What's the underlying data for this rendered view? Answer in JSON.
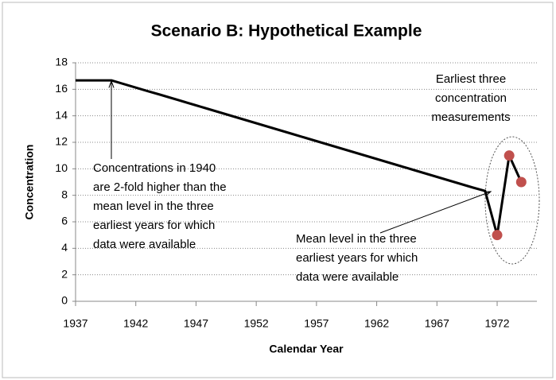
{
  "chart_data": {
    "type": "line",
    "title": "Scenario B: Hypothetical Example",
    "x_label": "Calendar Year",
    "y_label": "Concentration",
    "xlim": [
      1937,
      1975.3
    ],
    "xticks": [
      1937,
      1942,
      1947,
      1952,
      1957,
      1962,
      1967,
      1972
    ],
    "ylim": [
      0,
      18
    ],
    "yticks": [
      0,
      2,
      4,
      6,
      8,
      10,
      12,
      14,
      16,
      18
    ],
    "grid": true,
    "series": [
      {
        "color": "#000000",
        "markers": false,
        "x": [
          1937,
          1938,
          1939,
          1940,
          1941,
          1942,
          1943,
          1944,
          1945,
          1946,
          1947,
          1948,
          1949,
          1950,
          1951,
          1952,
          1953,
          1954,
          1955,
          1956,
          1957,
          1958,
          1959,
          1960,
          1961,
          1962,
          1963,
          1964,
          1965,
          1966,
          1967,
          1968,
          1969,
          1970,
          1971,
          1972,
          1973,
          1974
        ],
        "values": [
          16.67,
          16.67,
          16.67,
          16.67,
          16.4,
          16.13,
          15.86,
          15.6,
          15.33,
          15.06,
          14.79,
          14.52,
          14.25,
          13.98,
          13.71,
          13.44,
          13.17,
          12.9,
          12.63,
          12.36,
          12.09,
          11.82,
          11.55,
          11.28,
          11.01,
          10.74,
          10.47,
          10.2,
          9.93,
          9.66,
          9.39,
          9.12,
          8.85,
          8.58,
          8.33,
          5,
          11,
          9
        ]
      },
      {
        "color": "#c0504d",
        "markers": true,
        "x": [
          1972,
          1973,
          1974
        ],
        "values": [
          5,
          11,
          9
        ]
      }
    ],
    "annotations": [
      {
        "lines": [
          "Concentrations in 1940",
          "are 2-fold higher than the",
          "mean level in the three",
          "earliest years for which",
          "data were available"
        ]
      },
      {
        "lines": [
          "Mean level in the three",
          "earliest years for which",
          "data were available"
        ]
      },
      {
        "lines": [
          "Earliest three",
          "concentration",
          "measurements"
        ]
      }
    ]
  }
}
